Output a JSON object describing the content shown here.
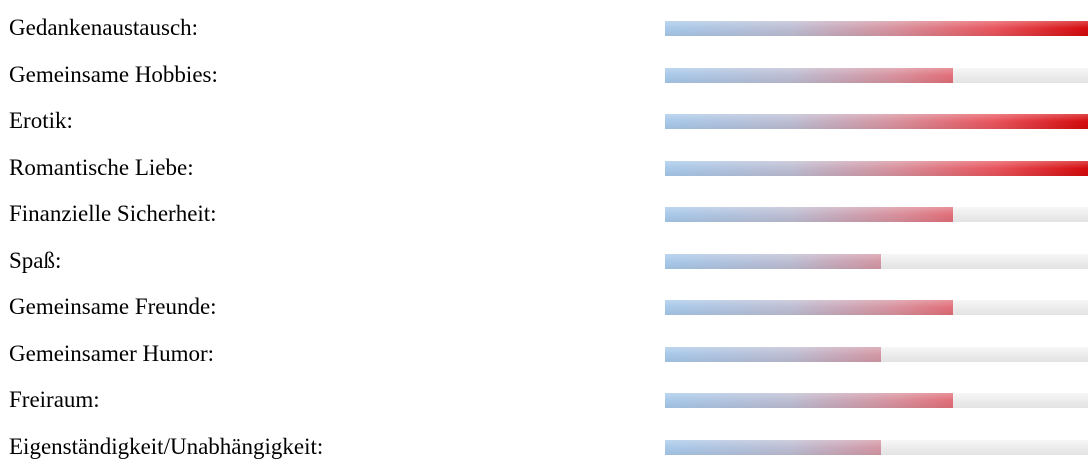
{
  "chart_data": {
    "type": "bar",
    "orientation": "horizontal",
    "max": 5,
    "categories": [
      "Gedankenaustausch:",
      "Gemeinsame Hobbies:",
      "Erotik:",
      "Romantische Liebe:",
      "Finanzielle Sicherheit:",
      "Spaß:",
      "Gemeinsame Freunde:",
      "Gemeinsamer Humor:",
      "Freiraum:",
      "Eigenständigkeit/Unabhängigkeit:"
    ],
    "values": [
      5,
      4,
      5,
      5,
      4,
      3,
      4,
      3,
      4,
      3
    ],
    "colors": {
      "bar_start": "#a7c9ea",
      "bar_end": "#d40a0c",
      "track": "#ebebeb"
    }
  }
}
